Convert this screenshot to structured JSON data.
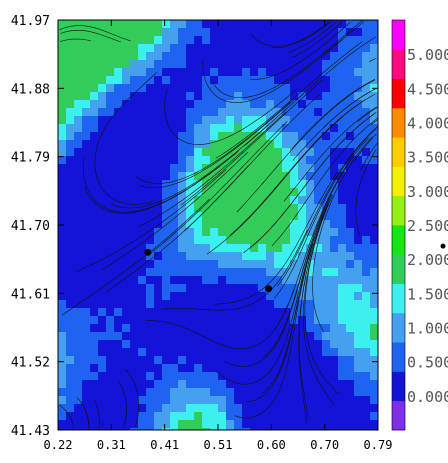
{
  "chart_data": {
    "type": "heatmap",
    "title": "",
    "xlabel": "",
    "ylabel": "",
    "xlim": [
      0.22,
      0.79
    ],
    "ylim": [
      41.43,
      41.97
    ],
    "x_ticks": [
      "0.22",
      "0.31",
      "0.41",
      "0.51",
      "0.60",
      "0.70",
      "0.79"
    ],
    "y_ticks": [
      "41.97",
      "41.88",
      "41.79",
      "41.70",
      "41.61",
      "41.52",
      "41.43"
    ],
    "overlay": "streamlines",
    "grid": false,
    "colorbar": {
      "placement": "right",
      "range": [
        -0.5,
        5.5
      ],
      "labels": [
        "0.000",
        "0.500",
        "1.000",
        "1.500",
        "2.000",
        "2.500",
        "3.000",
        "3.500",
        "4.000",
        "4.500",
        "5.000"
      ],
      "colors": [
        "#7f2fe8",
        "#1414d8",
        "#1e64f0",
        "#46a0f0",
        "#3cf0f0",
        "#32cc5a",
        "#14e614",
        "#96f014",
        "#f0f000",
        "#ffcc00",
        "#ff8c00",
        "#ff0000",
        "#ff0a7f",
        "#ff00ff"
      ],
      "bullet_marker_value": 2.0
    },
    "points": [
      {
        "x": 0.38,
        "y": 41.664
      },
      {
        "x": 0.595,
        "y": 41.616
      }
    ],
    "field_colors": {
      "low": "#1414d8",
      "mid": "#1e64f0",
      "high": "#46a0f0",
      "higher": "#3cf0f0",
      "peak": "#32cc5a"
    }
  }
}
